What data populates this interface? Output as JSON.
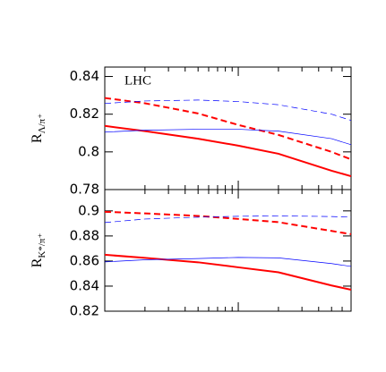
{
  "chart_data": [
    {
      "type": "line",
      "annotation": "LHC",
      "ylabel": "R",
      "ylabel_sub": "Λ/π⁺",
      "xscale": "log",
      "xlim": [
        1,
        70
      ],
      "xticks": [
        10
      ],
      "xminor": [
        2,
        3,
        4,
        5,
        6,
        7,
        8,
        9,
        20,
        30,
        40,
        50,
        60,
        70
      ],
      "ylim": [
        0.78,
        0.845
      ],
      "yticks": [
        0.78,
        0.8,
        0.82,
        0.84
      ],
      "x": [
        1,
        2,
        5,
        10,
        20,
        50,
        70
      ],
      "series": [
        {
          "color": "#ff0000",
          "dash": true,
          "width": 2,
          "values": [
            0.8286,
            0.8258,
            0.8204,
            0.8143,
            0.809,
            0.8,
            0.796
          ]
        },
        {
          "color": "#ff0000",
          "dash": false,
          "width": 2,
          "values": [
            0.8138,
            0.811,
            0.807,
            0.8033,
            0.799,
            0.79,
            0.7871
          ]
        },
        {
          "color": "#0000ff",
          "dash": false,
          "width": 0.7,
          "values": [
            0.8105,
            0.8115,
            0.812,
            0.812,
            0.811,
            0.807,
            0.8038
          ]
        },
        {
          "color": "#0000ff",
          "dash": true,
          "width": 0.7,
          "values": [
            0.8257,
            0.827,
            0.8275,
            0.8267,
            0.825,
            0.82,
            0.8167
          ]
        }
      ]
    },
    {
      "type": "line",
      "ylabel": "R",
      "ylabel_sub": "K*/π⁺",
      "xscale": "log",
      "xlim": [
        1,
        70
      ],
      "xticks": [
        10
      ],
      "xminor": [
        2,
        3,
        4,
        5,
        6,
        7,
        8,
        9,
        20,
        30,
        40,
        50,
        60,
        70
      ],
      "ylim": [
        0.82,
        0.917
      ],
      "yticks": [
        0.82,
        0.84,
        0.86,
        0.88,
        0.9
      ],
      "x": [
        1,
        2,
        5,
        10,
        20,
        50,
        70
      ],
      "series": [
        {
          "color": "#ff0000",
          "dash": true,
          "width": 2,
          "values": [
            0.8993,
            0.898,
            0.896,
            0.8936,
            0.891,
            0.884,
            0.8814
          ]
        },
        {
          "color": "#ff0000",
          "dash": false,
          "width": 2,
          "values": [
            0.865,
            0.8625,
            0.859,
            0.855,
            0.851,
            0.8405,
            0.8371
          ]
        },
        {
          "color": "#0000ff",
          "dash": false,
          "width": 0.7,
          "values": [
            0.8593,
            0.861,
            0.862,
            0.8629,
            0.8625,
            0.858,
            0.8557
          ]
        },
        {
          "color": "#0000ff",
          "dash": true,
          "width": 0.7,
          "values": [
            0.8907,
            0.8935,
            0.895,
            0.8957,
            0.896,
            0.8955,
            0.895
          ]
        }
      ]
    }
  ]
}
